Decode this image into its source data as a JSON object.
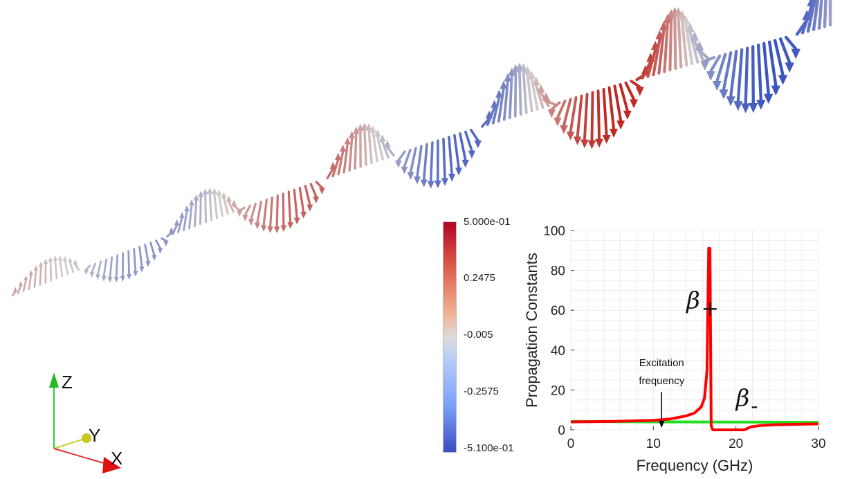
{
  "colorbar": {
    "ticks": [
      "5.000e-01",
      "0.2475",
      "-0.005",
      "-0.2575",
      "-5.100e-01"
    ],
    "colors": {
      "max": "#b40426",
      "mid": "#dddcdc",
      "min": "#3b4cc0"
    }
  },
  "axes_triad": {
    "z_label": "Z",
    "y_label": "Y",
    "x_label": "X"
  },
  "chart_data": {
    "type": "line",
    "xlabel": "Frequency (GHz)",
    "ylabel": "Propagation Constants",
    "xlim": [
      0,
      30
    ],
    "ylim": [
      0,
      100
    ],
    "xticks": [
      "0",
      "10",
      "20",
      "30"
    ],
    "yticks": [
      "0",
      "20",
      "40",
      "60",
      "80",
      "100"
    ],
    "grid": true,
    "series": [
      {
        "name": "β+",
        "color": "#ff0000",
        "x": [
          0,
          5,
          10,
          12,
          14,
          15,
          15.8,
          16.2,
          16.5,
          16.7,
          16.85,
          17.0,
          17.2,
          19,
          21,
          21.8,
          23,
          25,
          30
        ],
        "y": [
          4,
          4.2,
          4.8,
          5.4,
          7,
          8.5,
          11.5,
          16,
          30,
          91,
          91,
          2,
          0,
          0,
          0,
          1.5,
          2.2,
          2.6,
          3
        ]
      },
      {
        "name": "β-",
        "color": "#22dd22",
        "x": [
          0,
          10,
          20,
          30
        ],
        "y": [
          4.2,
          4,
          3.9,
          3.8
        ]
      }
    ],
    "annotations": [
      {
        "text": "β",
        "subscript": "+",
        "x": 14,
        "y": 61
      },
      {
        "text": "β",
        "subscript": "-",
        "x": 20,
        "y": 12
      },
      {
        "text": "Excitation",
        "x": 11,
        "y": 32
      },
      {
        "text": "frequency",
        "x": 11,
        "y": 23
      }
    ],
    "excitation_frequency": 11
  }
}
